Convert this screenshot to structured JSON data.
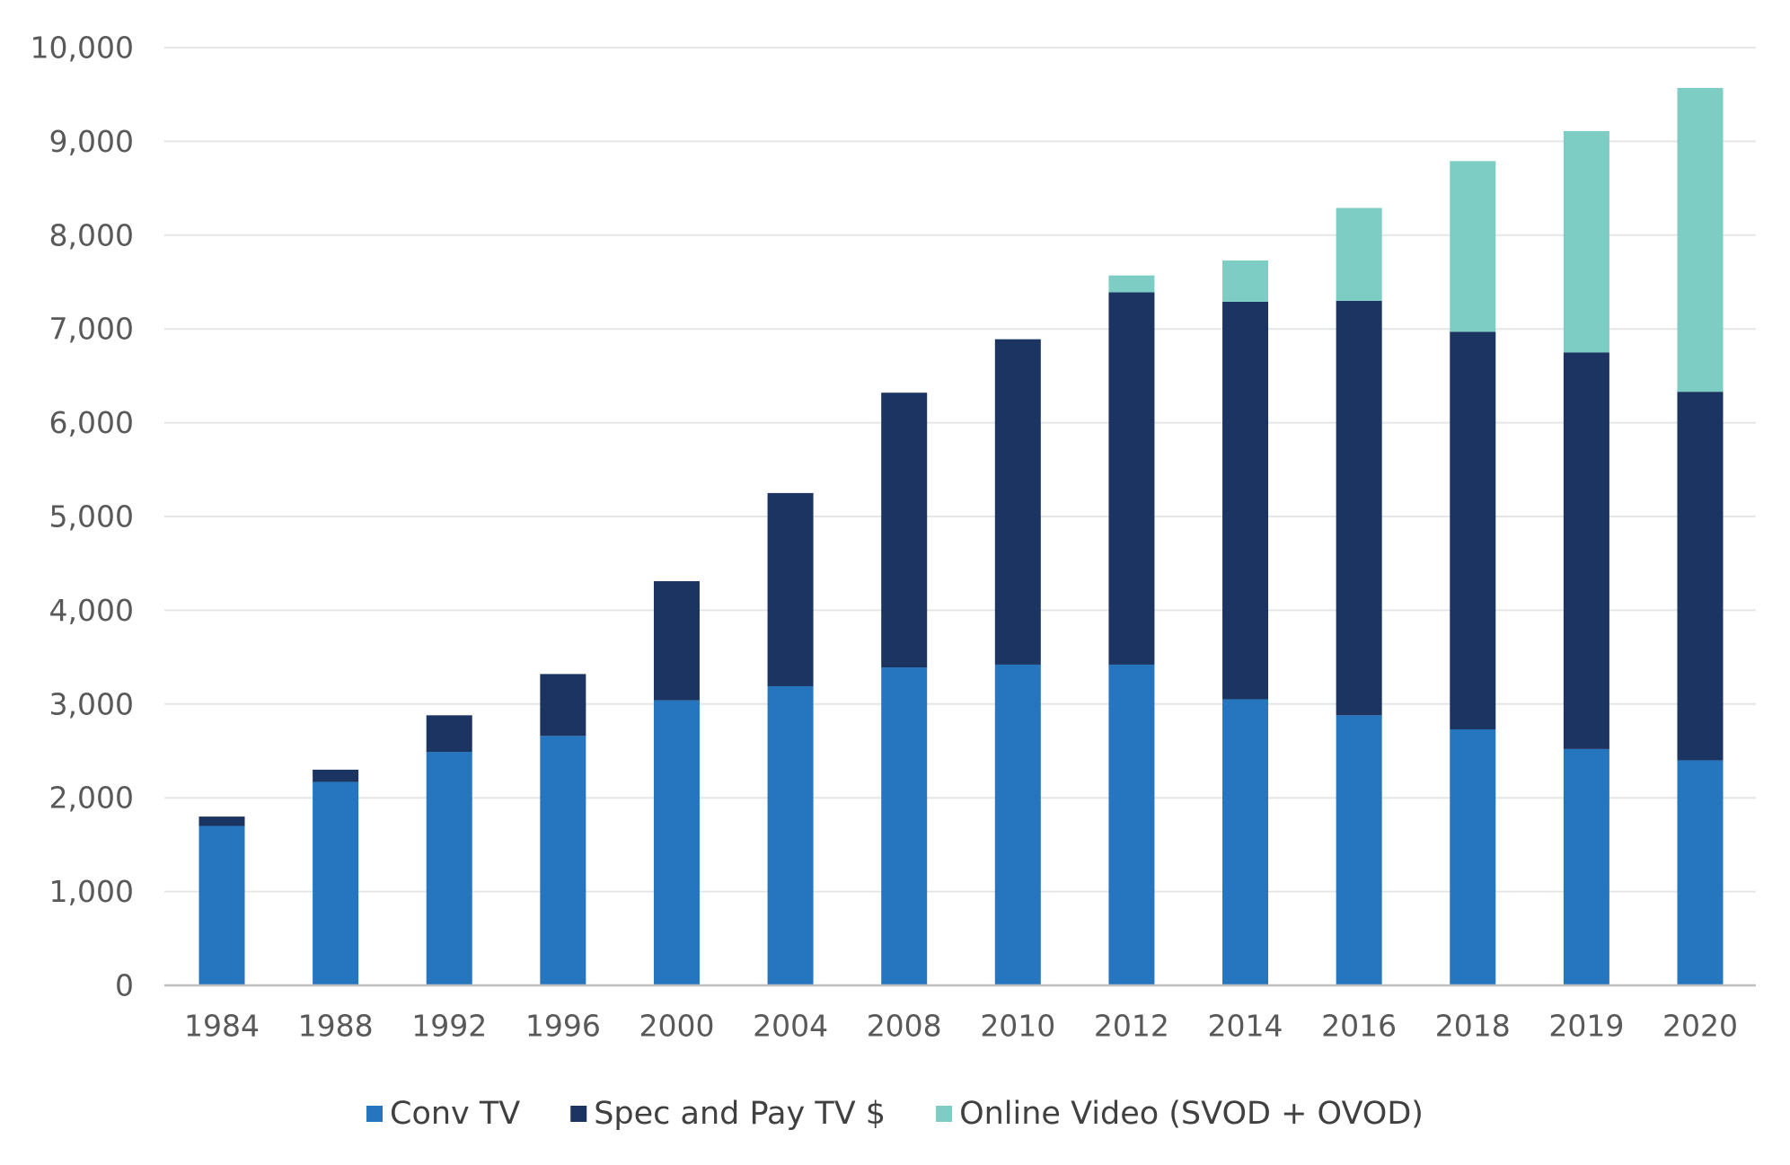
{
  "chart_data": {
    "type": "bar",
    "stacked": true,
    "categories": [
      "1984",
      "1988",
      "1992",
      "1996",
      "2000",
      "2004",
      "2008",
      "2010",
      "2012",
      "2014",
      "2016",
      "2018",
      "2019",
      "2020"
    ],
    "series": [
      {
        "name": "Conv TV",
        "color": "#2675BF",
        "values": [
          1700,
          2170,
          2490,
          2660,
          3040,
          3190,
          3390,
          3420,
          3420,
          3050,
          2880,
          2730,
          2520,
          2400
        ]
      },
      {
        "name": "Spec and Pay TV $",
        "color": "#1C3461",
        "values": [
          100,
          130,
          390,
          660,
          1270,
          2060,
          2930,
          3470,
          3970,
          4240,
          4420,
          4240,
          4230,
          3930
        ]
      },
      {
        "name": "Online Video (SVOD + OVOD)",
        "color": "#7ECDC5",
        "values": [
          0,
          0,
          0,
          0,
          0,
          0,
          0,
          0,
          180,
          440,
          990,
          1820,
          2360,
          3240
        ]
      }
    ],
    "ylim": [
      0,
      10000
    ],
    "yticks": [
      0,
      1000,
      2000,
      3000,
      4000,
      5000,
      6000,
      7000,
      8000,
      9000,
      10000
    ],
    "ytick_labels": [
      "0",
      "1,000",
      "2,000",
      "3,000",
      "4,000",
      "5,000",
      "6,000",
      "7,000",
      "8,000",
      "9,000",
      "10,000"
    ],
    "grid": true,
    "legend_position": "bottom",
    "title": "",
    "xlabel": "",
    "ylabel": ""
  }
}
